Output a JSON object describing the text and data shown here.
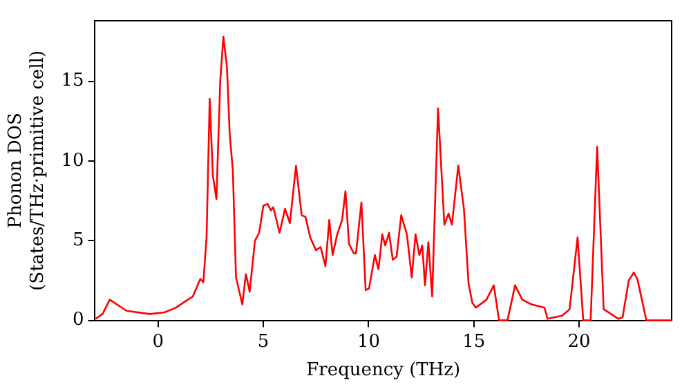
{
  "chart_data": {
    "type": "line",
    "xlabel": "Frequency (THz)",
    "ylabel": "Phonon DOS\n(States/THz·primitive cell)",
    "xlim": [
      -3,
      24.4
    ],
    "xticks": [
      0,
      5,
      10,
      15,
      20
    ],
    "ylim": [
      0,
      18.8
    ],
    "yticks": [
      0,
      5,
      10,
      15
    ],
    "grid": false,
    "legend": false,
    "marker": "none",
    "line_style": "solid",
    "series": [
      {
        "color": "#ff0000",
        "x": [
          -2.97,
          -2.64,
          -2.3,
          -1.5,
          -0.4,
          0.3,
          0.85,
          1.3,
          1.65,
          2.0,
          2.15,
          2.3,
          2.45,
          2.6,
          2.77,
          2.95,
          3.1,
          3.27,
          3.4,
          3.55,
          3.7,
          4.0,
          4.17,
          4.35,
          4.6,
          4.8,
          5.0,
          5.2,
          5.36,
          5.47,
          5.77,
          6.03,
          6.26,
          6.55,
          6.82,
          7.0,
          7.23,
          7.5,
          7.72,
          7.95,
          8.13,
          8.29,
          8.51,
          8.74,
          8.9,
          9.07,
          9.3,
          9.4,
          9.66,
          9.86,
          10.02,
          10.3,
          10.47,
          10.65,
          10.79,
          10.97,
          11.15,
          11.33,
          11.55,
          11.82,
          12.05,
          12.23,
          12.41,
          12.55,
          12.68,
          12.84,
          13.02,
          13.3,
          13.6,
          13.8,
          13.96,
          14.26,
          14.53,
          14.75,
          14.93,
          15.1,
          15.6,
          15.95,
          16.2,
          16.6,
          16.96,
          17.3,
          17.75,
          18.36,
          18.5,
          19.2,
          19.55,
          19.93,
          20.2,
          20.55,
          20.86,
          21.17,
          21.87,
          22.07,
          22.36,
          22.6,
          22.77,
          23.2,
          24.4
        ],
        "values": [
          0.1,
          0.4,
          1.3,
          0.6,
          0.4,
          0.5,
          0.8,
          1.2,
          1.5,
          2.6,
          2.4,
          5.2,
          13.9,
          9.1,
          7.6,
          15,
          17.8,
          15.9,
          11.7,
          9.4,
          2.7,
          1.0,
          2.9,
          1.8,
          5.0,
          5.5,
          7.2,
          7.3,
          6.9,
          7.1,
          5.5,
          7.0,
          6.1,
          9.7,
          6.6,
          6.5,
          5.2,
          4.4,
          4.6,
          3.4,
          6.3,
          4.1,
          5.4,
          6.3,
          8.1,
          4.8,
          4.2,
          4.2,
          7.4,
          1.9,
          2.0,
          4.1,
          3.2,
          5.4,
          4.7,
          5.5,
          3.8,
          4.0,
          6.6,
          5.4,
          2.7,
          5.4,
          4.1,
          4.7,
          2.2,
          4.9,
          1.5,
          13.3,
          6.0,
          6.7,
          6.0,
          9.7,
          7.0,
          2.3,
          1.1,
          0.8,
          1.3,
          2.2,
          0,
          0,
          2.2,
          1.3,
          1.0,
          0.8,
          0.1,
          0.3,
          0.7,
          5.2,
          0,
          0,
          10.9,
          0.7,
          0.1,
          0.2,
          2.5,
          3.0,
          2.6,
          0,
          0
        ]
      }
    ]
  }
}
